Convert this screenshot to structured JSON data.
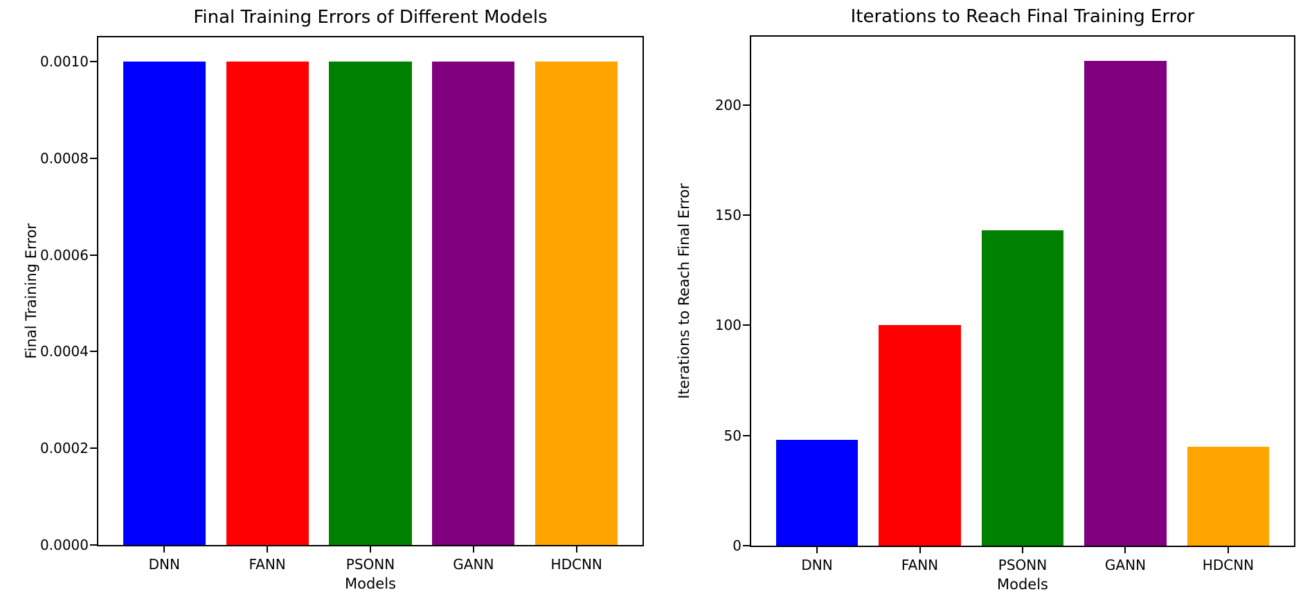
{
  "figure": {
    "background": "#ffffff",
    "text_color": "#000000"
  },
  "chart_data": [
    {
      "type": "bar",
      "title": "Final Training Errors of Different Models",
      "xlabel": "Models",
      "ylabel": "Final Training Error",
      "categories": [
        "DNN",
        "FANN",
        "PSONN",
        "GANN",
        "HDCNN"
      ],
      "values": [
        0.001,
        0.001,
        0.001,
        0.001,
        0.001
      ],
      "bar_colors": [
        "#0000ff",
        "#ff0000",
        "#008000",
        "#800080",
        "#ffa500"
      ],
      "ylim": [
        0,
        0.00105
      ],
      "yticks": [
        0,
        0.0002,
        0.0004,
        0.0006,
        0.0008,
        0.001
      ],
      "ytick_labels": [
        "0.0000",
        "0.0002",
        "0.0004",
        "0.0006",
        "0.0008",
        "0.0010"
      ],
      "grid": false,
      "legend": null
    },
    {
      "type": "bar",
      "title": "Iterations to Reach Final Training Error",
      "xlabel": "Models",
      "ylabel": "Iterations to Reach Final Error",
      "categories": [
        "DNN",
        "FANN",
        "PSONN",
        "GANN",
        "HDCNN"
      ],
      "values": [
        48,
        100,
        143,
        220,
        45
      ],
      "bar_colors": [
        "#0000ff",
        "#ff0000",
        "#008000",
        "#800080",
        "#ffa500"
      ],
      "ylim": [
        0,
        231
      ],
      "yticks": [
        0,
        50,
        100,
        150,
        200
      ],
      "ytick_labels": [
        "0",
        "50",
        "100",
        "150",
        "200"
      ],
      "grid": false,
      "legend": null
    }
  ]
}
